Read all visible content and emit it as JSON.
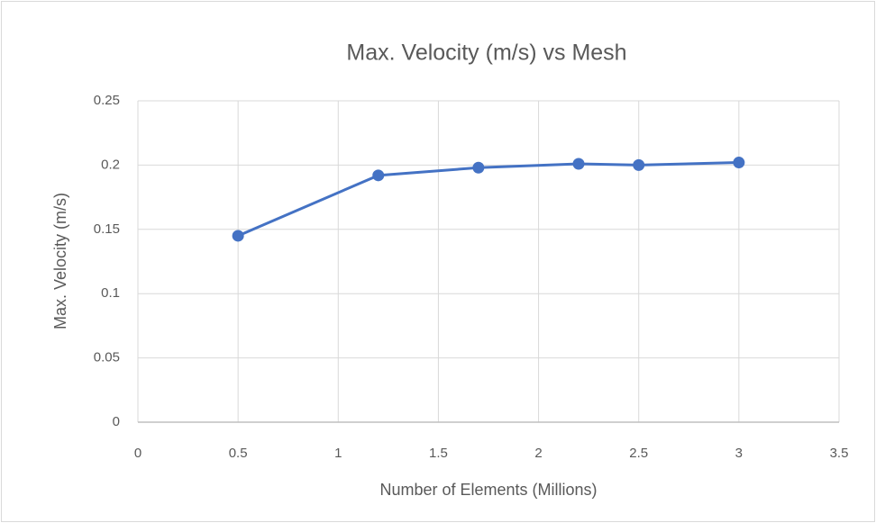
{
  "chart_data": {
    "type": "line",
    "title": "Max. Velocity (m/s) vs Mesh",
    "x_label": "Number of Elements (Millions)",
    "y_label": "Max. Velocity (m/s)",
    "series": [
      {
        "name": "Max. Velocity (m/s)",
        "color": "#4472c4",
        "x": [
          0.5,
          1.2,
          1.7,
          2.2,
          2.5,
          3
        ],
        "values": [
          0.145,
          0.192,
          0.198,
          0.201,
          0.2,
          0.202
        ]
      }
    ],
    "xlim": [
      0,
      3.5
    ],
    "xticks": [
      0,
      0.5,
      1,
      1.5,
      2,
      2.5,
      3,
      3.5
    ],
    "ylim": [
      0,
      0.25
    ],
    "yticks": [
      0,
      0.05,
      0.1,
      0.15,
      0.2,
      0.25
    ],
    "grid": true
  }
}
